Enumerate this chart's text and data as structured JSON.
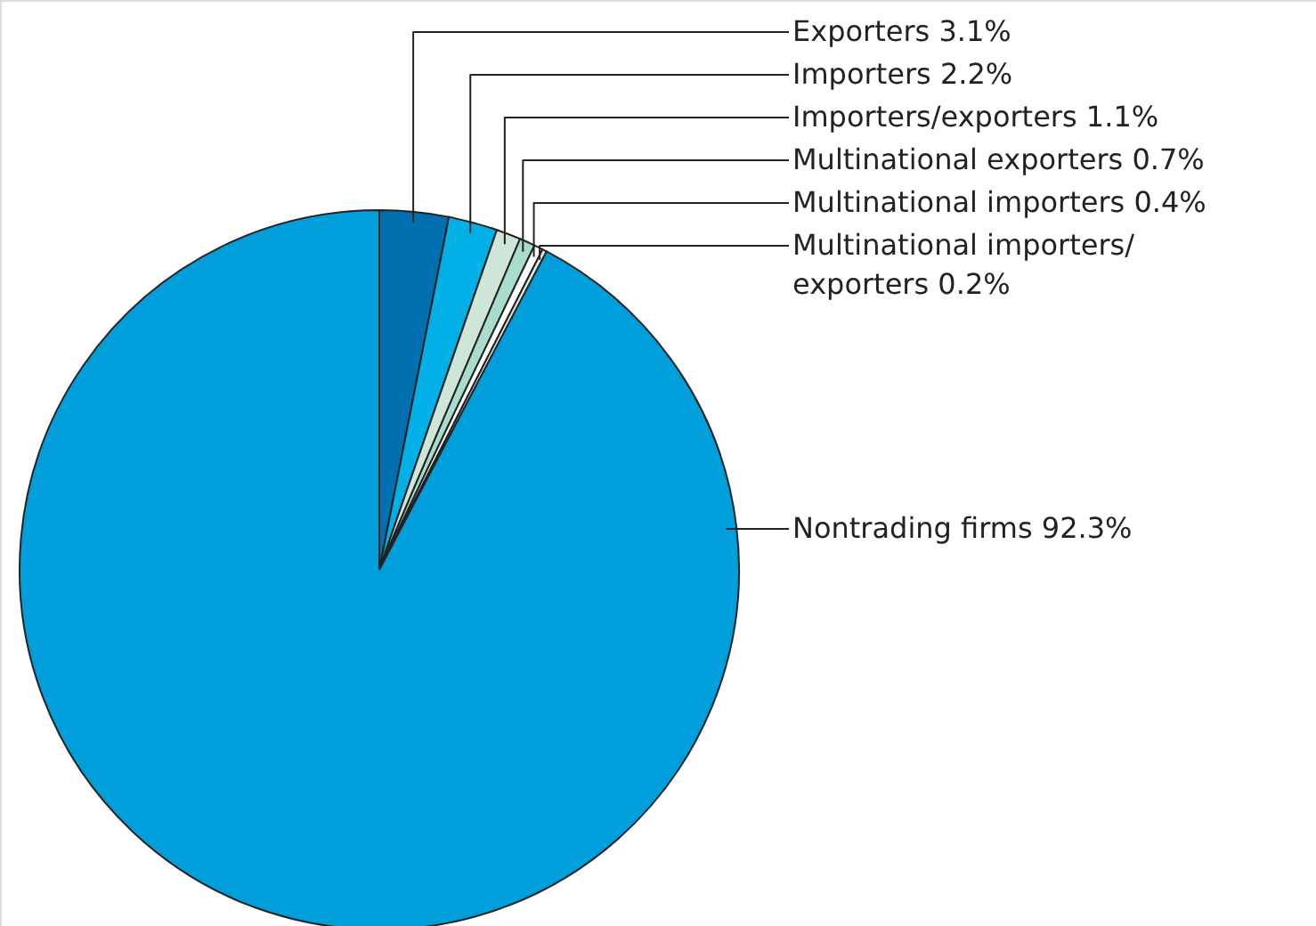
{
  "chart_data": {
    "type": "pie",
    "categories": [
      "Exporters",
      "Importers",
      "Importers/exporters",
      "Multinational exporters",
      "Multinational importers",
      "Multinational importers/exporters",
      "Nontrading firms"
    ],
    "values": [
      3.1,
      2.2,
      1.1,
      0.7,
      0.4,
      0.2,
      92.3
    ],
    "value_labels": [
      "3.1%",
      "2.2%",
      "1.1%",
      "0.7%",
      "0.4%",
      "0.2%",
      "92.3%"
    ],
    "colors": [
      "#0070b0",
      "#00b0e6",
      "#cde6d8",
      "#a8dccd",
      "#ffffff",
      "#d8eee6",
      "#009fdc"
    ]
  }
}
